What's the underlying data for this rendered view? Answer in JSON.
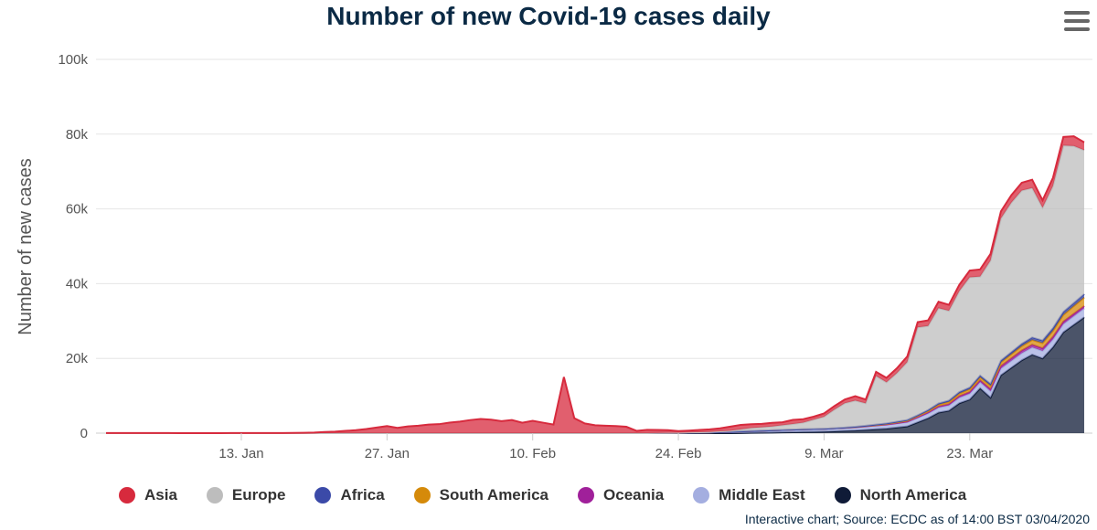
{
  "page_title": "Number of new Covid-19 cases daily",
  "menu_icon": "hamburger-menu-icon",
  "source_text": "Interactive chart; Source: ECDC as of 14:00 BST 03/04/2020",
  "chart_data": {
    "type": "area",
    "stacked": true,
    "title": "Number of new Covid-19 cases daily",
    "xlabel": "",
    "ylabel": "Number of new cases",
    "ylim": [
      0,
      100000
    ],
    "yticks": [
      0,
      20000,
      40000,
      60000,
      80000,
      100000
    ],
    "ytick_labels": [
      "0",
      "20k",
      "40k",
      "60k",
      "80k",
      "100k"
    ],
    "x_day_range": [
      0,
      93
    ],
    "x_start_date": "31 Dec 2019",
    "xticks": [
      13,
      27,
      41,
      55,
      69,
      83
    ],
    "xtick_labels": [
      "13. Jan",
      "27. Jan",
      "10. Feb",
      "24. Feb",
      "9. Mar",
      "23. Mar"
    ],
    "grid": true,
    "legend_position": "bottom",
    "series": [
      {
        "name": "North America",
        "color": "#0f1b37",
        "points": [
          [
            0,
            0
          ],
          [
            60,
            0
          ],
          [
            65,
            200
          ],
          [
            69,
            400
          ],
          [
            72,
            700
          ],
          [
            75,
            1200
          ],
          [
            77,
            1800
          ],
          [
            79,
            4000
          ],
          [
            80,
            5500
          ],
          [
            81,
            6000
          ],
          [
            82,
            8000
          ],
          [
            83,
            9000
          ],
          [
            84,
            12000
          ],
          [
            85,
            9500
          ],
          [
            86,
            15500
          ],
          [
            87,
            17500
          ],
          [
            88,
            19500
          ],
          [
            89,
            21000
          ],
          [
            90,
            20000
          ],
          [
            91,
            23000
          ],
          [
            92,
            27000
          ],
          [
            93,
            29000
          ],
          [
            94,
            31000
          ]
        ]
      },
      {
        "name": "Middle East",
        "color": "#a4aee0",
        "points": [
          [
            0,
            0
          ],
          [
            52,
            0
          ],
          [
            58,
            200
          ],
          [
            62,
            500
          ],
          [
            66,
            700
          ],
          [
            70,
            800
          ],
          [
            74,
            1000
          ],
          [
            78,
            1200
          ],
          [
            82,
            1500
          ],
          [
            86,
            1800
          ],
          [
            90,
            2000
          ],
          [
            94,
            2400
          ]
        ]
      },
      {
        "name": "Oceania",
        "color": "#a0209a",
        "points": [
          [
            0,
            0
          ],
          [
            72,
            0
          ],
          [
            76,
            100
          ],
          [
            80,
            300
          ],
          [
            84,
            500
          ],
          [
            86,
            650
          ],
          [
            88,
            700
          ],
          [
            90,
            700
          ],
          [
            92,
            650
          ],
          [
            94,
            600
          ]
        ]
      },
      {
        "name": "South America",
        "color": "#d58a0a",
        "points": [
          [
            0,
            0
          ],
          [
            70,
            0
          ],
          [
            74,
            100
          ],
          [
            78,
            300
          ],
          [
            80,
            500
          ],
          [
            82,
            700
          ],
          [
            84,
            800
          ],
          [
            86,
            1000
          ],
          [
            88,
            1200
          ],
          [
            90,
            1400
          ],
          [
            92,
            1800
          ],
          [
            94,
            2300
          ]
        ]
      },
      {
        "name": "Africa",
        "color": "#3b4aa8",
        "points": [
          [
            0,
            0
          ],
          [
            70,
            0
          ],
          [
            74,
            100
          ],
          [
            78,
            200
          ],
          [
            80,
            300
          ],
          [
            82,
            400
          ],
          [
            84,
            450
          ],
          [
            86,
            500
          ],
          [
            88,
            600
          ],
          [
            90,
            700
          ],
          [
            92,
            800
          ],
          [
            94,
            900
          ]
        ]
      },
      {
        "name": "Europe",
        "color": "#bdbdbd",
        "points": [
          [
            0,
            0
          ],
          [
            52,
            0
          ],
          [
            56,
            50
          ],
          [
            58,
            100
          ],
          [
            60,
            300
          ],
          [
            62,
            800
          ],
          [
            64,
            1000
          ],
          [
            66,
            1500
          ],
          [
            67,
            1800
          ],
          [
            68,
            2500
          ],
          [
            69,
            3200
          ],
          [
            70,
            5000
          ],
          [
            71,
            6500
          ],
          [
            72,
            7000
          ],
          [
            73,
            6000
          ],
          [
            74,
            13000
          ],
          [
            75,
            11000
          ],
          [
            76,
            13000
          ],
          [
            77,
            15500
          ],
          [
            78,
            23500
          ],
          [
            79,
            22500
          ],
          [
            80,
            25500
          ],
          [
            81,
            24000
          ],
          [
            82,
            27000
          ],
          [
            83,
            29500
          ],
          [
            84,
            26500
          ],
          [
            85,
            33000
          ],
          [
            86,
            38000
          ],
          [
            87,
            40000
          ],
          [
            88,
            41000
          ],
          [
            89,
            40000
          ],
          [
            90,
            35500
          ],
          [
            91,
            38000
          ],
          [
            92,
            44500
          ],
          [
            93,
            42000
          ],
          [
            94,
            38500
          ]
        ]
      },
      {
        "name": "Asia",
        "color": "#d72a3d",
        "points": [
          [
            0,
            27
          ],
          [
            10,
            10
          ],
          [
            14,
            30
          ],
          [
            18,
            50
          ],
          [
            19,
            80
          ],
          [
            20,
            150
          ],
          [
            21,
            300
          ],
          [
            22,
            400
          ],
          [
            23,
            600
          ],
          [
            24,
            800
          ],
          [
            25,
            1100
          ],
          [
            26,
            1500
          ],
          [
            27,
            1900
          ],
          [
            28,
            1400
          ],
          [
            29,
            1800
          ],
          [
            30,
            2000
          ],
          [
            31,
            2300
          ],
          [
            32,
            2400
          ],
          [
            33,
            2800
          ],
          [
            34,
            3100
          ],
          [
            35,
            3500
          ],
          [
            36,
            3800
          ],
          [
            37,
            3600
          ],
          [
            38,
            3200
          ],
          [
            39,
            3500
          ],
          [
            40,
            2800
          ],
          [
            41,
            3300
          ],
          [
            42,
            2800
          ],
          [
            43,
            2300
          ],
          [
            44,
            15000
          ],
          [
            45,
            4000
          ],
          [
            46,
            2600
          ],
          [
            47,
            2100
          ],
          [
            48,
            2000
          ],
          [
            49,
            1900
          ],
          [
            50,
            1700
          ],
          [
            51,
            600
          ],
          [
            52,
            900
          ],
          [
            53,
            800
          ],
          [
            54,
            700
          ],
          [
            55,
            400
          ],
          [
            56,
            500
          ],
          [
            57,
            600
          ],
          [
            58,
            700
          ],
          [
            59,
            800
          ],
          [
            60,
            1100
          ],
          [
            61,
            1200
          ],
          [
            62,
            1000
          ],
          [
            63,
            900
          ],
          [
            64,
            1000
          ],
          [
            65,
            800
          ],
          [
            66,
            1100
          ],
          [
            67,
            900
          ],
          [
            68,
            800
          ],
          [
            69,
            900
          ],
          [
            70,
            950
          ],
          [
            71,
            1000
          ],
          [
            72,
            1200
          ],
          [
            73,
            1000
          ],
          [
            74,
            1100
          ],
          [
            75,
            1200
          ],
          [
            76,
            1300
          ],
          [
            77,
            1500
          ],
          [
            78,
            1400
          ],
          [
            79,
            1500
          ],
          [
            80,
            1700
          ],
          [
            81,
            1600
          ],
          [
            82,
            1700
          ],
          [
            83,
            1800
          ],
          [
            84,
            1900
          ],
          [
            85,
            1800
          ],
          [
            86,
            1900
          ],
          [
            87,
            2000
          ],
          [
            88,
            2100
          ],
          [
            89,
            2200
          ],
          [
            90,
            2000
          ],
          [
            91,
            2200
          ],
          [
            92,
            2300
          ],
          [
            93,
            2600
          ],
          [
            94,
            2100
          ]
        ]
      }
    ],
    "legend": [
      {
        "name": "Asia",
        "color": "#d72a3d"
      },
      {
        "name": "Europe",
        "color": "#bdbdbd"
      },
      {
        "name": "Africa",
        "color": "#3b4aa8"
      },
      {
        "name": "South America",
        "color": "#d58a0a"
      },
      {
        "name": "Oceania",
        "color": "#a0209a"
      },
      {
        "name": "Middle East",
        "color": "#a4aee0"
      },
      {
        "name": "North America",
        "color": "#0f1b37"
      }
    ]
  }
}
